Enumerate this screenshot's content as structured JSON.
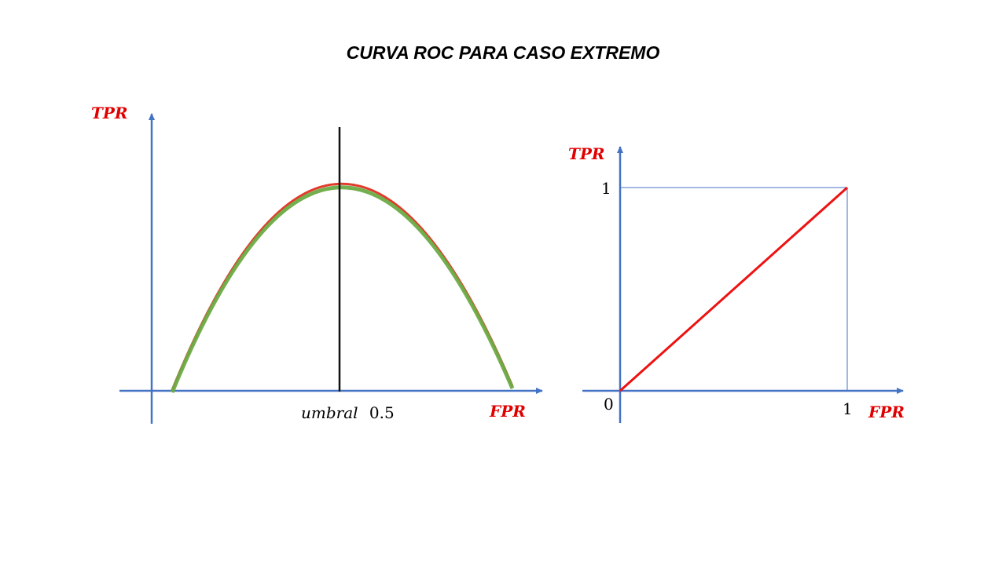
{
  "title": "CURVA ROC PARA CASO EXTREMO",
  "colors": {
    "axis": "#4472c4",
    "label_red": "#e00000",
    "curve_red": "#e23a2a",
    "curve_green": "#6cab45",
    "threshold_line": "#111111",
    "diagonal": "#ee1111",
    "guide": "#4472c4"
  },
  "left_panel": {
    "y_axis_label": "TPR",
    "x_axis_label": "FPR",
    "threshold_word": "umbral",
    "threshold_value": "0.5"
  },
  "right_panel": {
    "y_axis_label": "TPR",
    "x_axis_label": "FPR",
    "origin_label": "0",
    "x_tick_label": "1",
    "y_tick_label": "1",
    "diagonal": [
      [
        0,
        0
      ],
      [
        1,
        1
      ]
    ]
  }
}
